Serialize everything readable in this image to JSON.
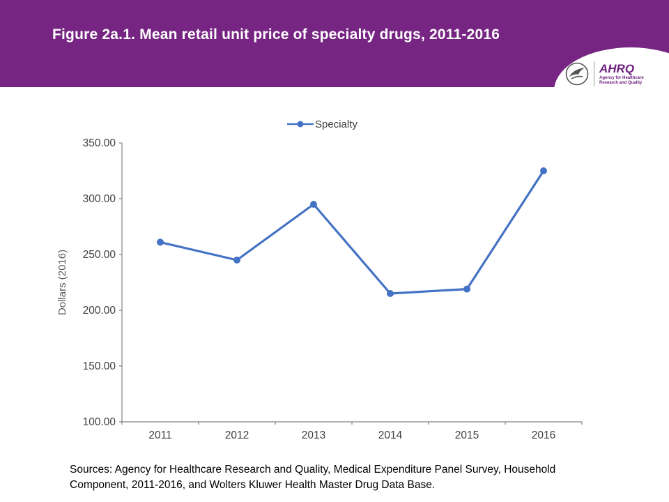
{
  "header": {
    "title": "Figure 2a.1. Mean retail unit price of specialty drugs, 2011-2016",
    "background_color": "#772583"
  },
  "logo": {
    "ahrq_name": "AHRQ",
    "ahrq_tagline": "Agency for Healthcare Research and Quality"
  },
  "chart_data": {
    "type": "line",
    "title": "Figure 2a.1. Mean retail unit price of specialty drugs, 2011-2016",
    "categories": [
      "2011",
      "2012",
      "2013",
      "2014",
      "2015",
      "2016"
    ],
    "series": [
      {
        "name": "Specialty",
        "values": [
          261,
          245,
          295,
          215,
          219,
          325
        ]
      }
    ],
    "xlabel": "",
    "ylabel": "Dollars (2016)",
    "ylim": [
      100,
      350
    ],
    "yticks": [
      "350.00",
      "300.00",
      "250.00",
      "200.00",
      "150.00",
      "100.00"
    ],
    "legend_position": "top",
    "grid": "off",
    "line_color": "#4472C4",
    "axis_color": "#808080",
    "tick_label_color": "#404040"
  },
  "footer": {
    "sources": "Sources: Agency for Healthcare Research and Quality, Medical Expenditure Panel Survey, Household Component, 2011-2016, and Wolters Kluwer Health Master Drug Data Base."
  }
}
